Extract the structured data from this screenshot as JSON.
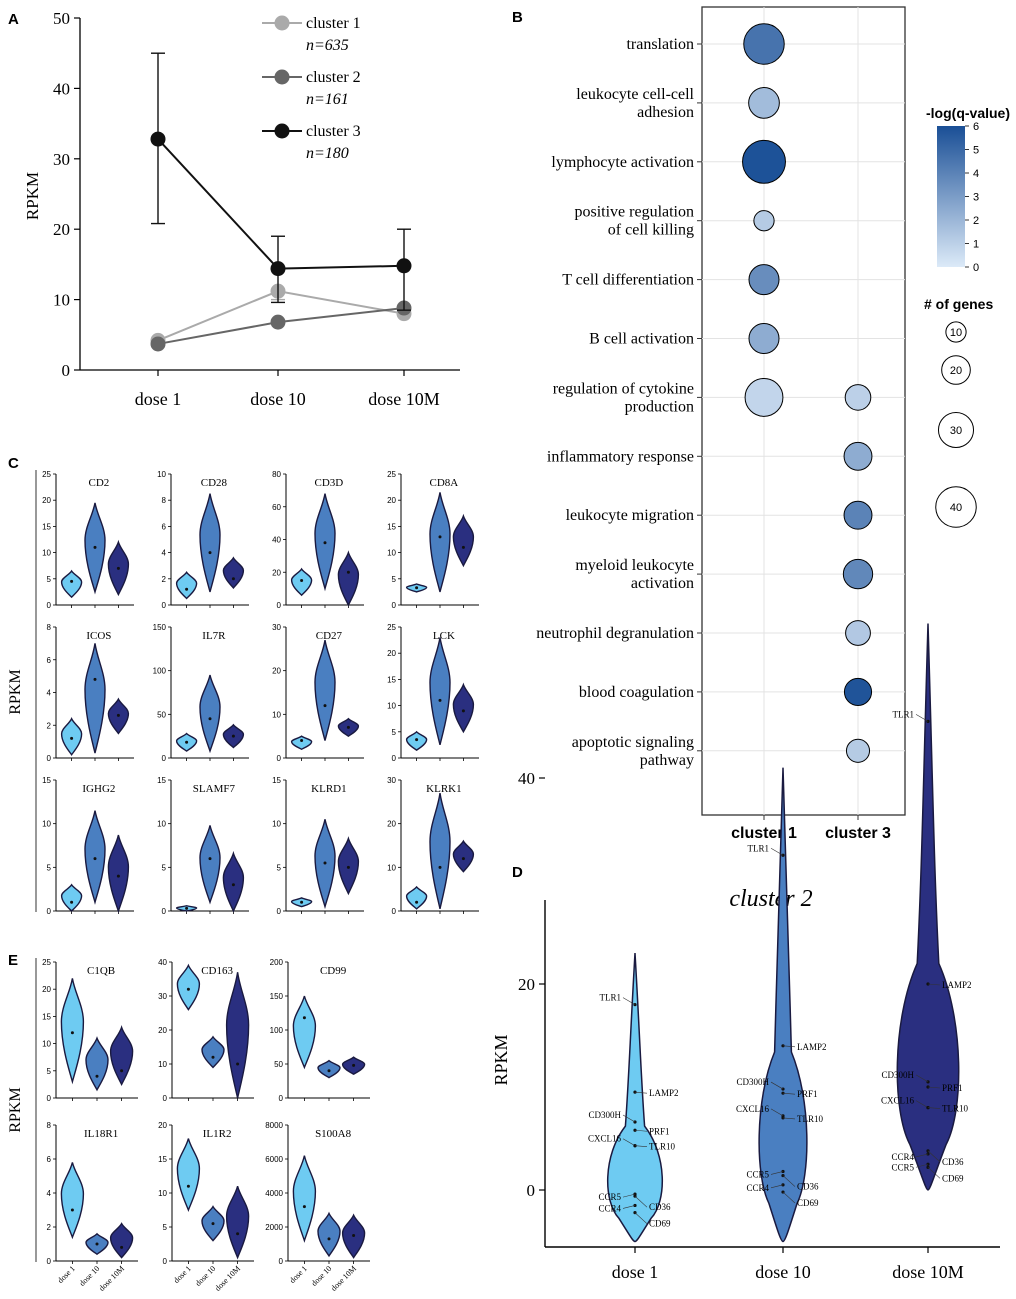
{
  "panel_labels": {
    "a": "A",
    "b": "B",
    "c": "C",
    "d": "D",
    "e": "E"
  },
  "chart_data": [
    {
      "panel": "A",
      "type": "line",
      "ylabel": "RPKM",
      "categories": [
        "dose 1",
        "dose 10",
        "dose 10M"
      ],
      "ylim": [
        0,
        50
      ],
      "yticks": [
        "0",
        "10",
        "20",
        "30",
        "40",
        "50"
      ],
      "series": [
        {
          "name": "cluster 1",
          "n_label": "n=635",
          "color": "#aaaaaa",
          "values": [
            4.2,
            11.2,
            8.0
          ],
          "err_low": [
            4.2,
            10.0,
            8.0
          ],
          "err_high": [
            4.2,
            11.2,
            8.0
          ]
        },
        {
          "name": "cluster 2",
          "n_label": "n=161",
          "color": "#666666",
          "values": [
            3.7,
            6.8,
            8.8
          ],
          "err_low": [
            3.7,
            6.8,
            8.8
          ],
          "err_high": [
            3.7,
            6.8,
            8.8
          ]
        },
        {
          "name": "cluster 3",
          "n_label": "n=180",
          "color": "#111111",
          "values": [
            32.8,
            14.4,
            14.8
          ],
          "err_low": [
            20.8,
            9.6,
            8.5
          ],
          "err_high": [
            45.0,
            19.0,
            20.0
          ]
        }
      ]
    },
    {
      "panel": "B",
      "type": "scatter",
      "subtype": "bubble",
      "terms": [
        "translation",
        "leukocyte cell-cell|adhesion",
        "lymphocyte activation",
        "positive regulation|of cell killing",
        "T cell differentiation",
        "B cell activation",
        "regulation of cytokine|production",
        "inflammatory response",
        "leukocyte migration",
        "myeloid leukocyte|activation",
        "neutrophil degranulation",
        "blood coagulation",
        "apoptotic signaling|pathway"
      ],
      "columns": [
        "cluster 1",
        "cluster 3"
      ],
      "points": [
        {
          "term": 0,
          "col": 0,
          "genes": 40,
          "q": 4.6
        },
        {
          "term": 1,
          "col": 0,
          "genes": 23,
          "q": 1.8
        },
        {
          "term": 2,
          "col": 0,
          "genes": 45,
          "q": 5.9
        },
        {
          "term": 3,
          "col": 0,
          "genes": 10,
          "q": 1.2
        },
        {
          "term": 4,
          "col": 0,
          "genes": 22,
          "q": 3.6
        },
        {
          "term": 5,
          "col": 0,
          "genes": 22,
          "q": 2.4
        },
        {
          "term": 6,
          "col": 0,
          "genes": 35,
          "q": 0.8
        },
        {
          "term": 6,
          "col": 1,
          "genes": 16,
          "q": 1.0
        },
        {
          "term": 7,
          "col": 1,
          "genes": 19,
          "q": 2.4
        },
        {
          "term": 8,
          "col": 1,
          "genes": 19,
          "q": 4.0
        },
        {
          "term": 9,
          "col": 1,
          "genes": 21,
          "q": 3.8
        },
        {
          "term": 10,
          "col": 1,
          "genes": 15,
          "q": 1.3
        },
        {
          "term": 11,
          "col": 1,
          "genes": 18,
          "q": 5.8
        },
        {
          "term": 12,
          "col": 1,
          "genes": 13,
          "q": 1.2
        }
      ],
      "colorbar": {
        "title": "-log(q-value)",
        "min": 0,
        "max": 6,
        "ticks": [
          "0",
          "1",
          "2",
          "3",
          "4",
          "5",
          "6"
        ]
      },
      "size_legend": {
        "title": "# of genes",
        "values": [
          10,
          20,
          30,
          40
        ],
        "labels": [
          "10",
          "20",
          "30",
          "40"
        ]
      }
    },
    {
      "panel": "C",
      "type": "violin",
      "ylabel": "RPKM",
      "groups": [
        "dose 1",
        "dose 10",
        "dose 10M"
      ],
      "genes": [
        {
          "name": "CD2",
          "yticks": [
            "0",
            "5",
            "10",
            "15",
            "20",
            "25"
          ],
          "ymax": 25,
          "ranges": [
            [
              1.5,
              6.5
            ],
            [
              2.5,
              19.5
            ],
            [
              2,
              12
            ]
          ],
          "medians": [
            4.5,
            11,
            7
          ]
        },
        {
          "name": "CD28",
          "yticks": [
            "0",
            "2",
            "4",
            "6",
            "8",
            "10"
          ],
          "ymax": 10,
          "ranges": [
            [
              0.5,
              2.5
            ],
            [
              1,
              8.5
            ],
            [
              1.3,
              3.6
            ]
          ],
          "medians": [
            1.2,
            4,
            2
          ]
        },
        {
          "name": "CD3D",
          "yticks": [
            "0",
            "20",
            "40",
            "60",
            "80"
          ],
          "ymax": 80,
          "ranges": [
            [
              6,
              22
            ],
            [
              10,
              68
            ],
            [
              0,
              32
            ]
          ],
          "medians": [
            15,
            38,
            20
          ]
        },
        {
          "name": "CD8A",
          "yticks": [
            "0",
            "5",
            "10",
            "15",
            "20",
            "25"
          ],
          "ymax": 25,
          "ranges": [
            [
              2.5,
              4
            ],
            [
              2.5,
              21.5
            ],
            [
              7.5,
              17
            ]
          ],
          "medians": [
            3.3,
            13,
            11
          ]
        },
        {
          "name": "ICOS",
          "yticks": [
            "0",
            "2",
            "4",
            "6",
            "8"
          ],
          "ymax": 8,
          "ranges": [
            [
              0.2,
              2.4
            ],
            [
              0.3,
              7
            ],
            [
              1.5,
              3.6
            ]
          ],
          "medians": [
            1.2,
            4.8,
            2.6
          ]
        },
        {
          "name": "IL7R",
          "yticks": [
            "0",
            "50",
            "100",
            "150"
          ],
          "ymax": 150,
          "ranges": [
            [
              8,
              28
            ],
            [
              8,
              95
            ],
            [
              12,
              38
            ]
          ],
          "medians": [
            18,
            45,
            25
          ]
        },
        {
          "name": "CD27",
          "yticks": [
            "0",
            "10",
            "20",
            "30"
          ],
          "ymax": 30,
          "ranges": [
            [
              2,
              5
            ],
            [
              4,
              27
            ],
            [
              5,
              9
            ]
          ],
          "medians": [
            4,
            12,
            7
          ]
        },
        {
          "name": "LCK",
          "yticks": [
            "0",
            "5",
            "10",
            "15",
            "20",
            "25"
          ],
          "ymax": 25,
          "ranges": [
            [
              1.5,
              5
            ],
            [
              2.5,
              23
            ],
            [
              5,
              14
            ]
          ],
          "medians": [
            3.5,
            11,
            9
          ]
        },
        {
          "name": "IGHG2",
          "yticks": [
            "0",
            "5",
            "10",
            "15"
          ],
          "ymax": 15,
          "ranges": [
            [
              0,
              3
            ],
            [
              1,
              11.5
            ],
            [
              0,
              8.7
            ]
          ],
          "medians": [
            1,
            6,
            4
          ]
        },
        {
          "name": "SLAMF7",
          "yticks": [
            "0",
            "5",
            "10",
            "15"
          ],
          "ymax": 15,
          "ranges": [
            [
              0,
              0.6
            ],
            [
              1,
              9.8
            ],
            [
              0,
              6.6
            ]
          ],
          "medians": [
            0.3,
            6,
            3
          ]
        },
        {
          "name": "KLRD1",
          "yticks": [
            "0",
            "5",
            "10",
            "15"
          ],
          "ymax": 15,
          "ranges": [
            [
              0.5,
              1.5
            ],
            [
              0.5,
              10.5
            ],
            [
              2,
              8.3
            ]
          ],
          "medians": [
            1,
            5.5,
            5
          ]
        },
        {
          "name": "KLRK1",
          "yticks": [
            "0",
            "10",
            "20",
            "30"
          ],
          "ymax": 30,
          "ranges": [
            [
              0.5,
              5.5
            ],
            [
              0.5,
              27
            ],
            [
              9,
              16
            ]
          ],
          "medians": [
            2,
            10,
            12
          ]
        }
      ]
    },
    {
      "panel": "D",
      "type": "violin",
      "title": "cluster 2",
      "ylabel": "RPKM",
      "groups": [
        "dose 1",
        "dose 10",
        "dose 10M"
      ],
      "ylim": [
        -5,
        55
      ],
      "yticks": [
        "0",
        "20",
        "40"
      ],
      "violins": [
        {
          "range": [
            -5,
            23
          ],
          "color": "#6ecbf2",
          "median": 3
        },
        {
          "range": [
            -5,
            41
          ],
          "color": "#4a7fc1",
          "median": 6
        },
        {
          "range": [
            0,
            55
          ],
          "color": "#2a2f80",
          "median": 6
        }
      ],
      "gene_labels": [
        [
          {
            "g": "TLR1",
            "v": 18
          },
          {
            "g": "LAMP2",
            "v": 9.5
          },
          {
            "g": "CD300H",
            "v": 6.6
          },
          {
            "g": "PRF1",
            "v": 5.8
          },
          {
            "g": "CXCL16",
            "v": 4.3
          },
          {
            "g": "TLR10",
            "v": 4.3
          },
          {
            "g": "CCR5",
            "v": -0.4
          },
          {
            "g": "CD36",
            "v": -0.6
          },
          {
            "g": "CCR4",
            "v": -1.5
          },
          {
            "g": "CD69",
            "v": -2.2
          }
        ],
        [
          {
            "g": "TLR1",
            "v": 32.5
          },
          {
            "g": "LAMP2",
            "v": 14
          },
          {
            "g": "CD300H",
            "v": 9.8
          },
          {
            "g": "PRF1",
            "v": 9.4
          },
          {
            "g": "CXCL16",
            "v": 7.2
          },
          {
            "g": "TLR10",
            "v": 7
          },
          {
            "g": "CCR5",
            "v": 1.8
          },
          {
            "g": "CD36",
            "v": 1.4
          },
          {
            "g": "CCR4",
            "v": 0.5
          },
          {
            "g": "CD69",
            "v": -0.2
          }
        ],
        [
          {
            "g": "TLR1",
            "v": 45.5
          },
          {
            "g": "LAMP2",
            "v": 20
          },
          {
            "g": "CD300H",
            "v": 10.5
          },
          {
            "g": "PRF1",
            "v": 10
          },
          {
            "g": "CXCL16",
            "v": 8
          },
          {
            "g": "TLR10",
            "v": 8
          },
          {
            "g": "CCR4",
            "v": 3.5
          },
          {
            "g": "CD36",
            "v": 3.8
          },
          {
            "g": "CCR5",
            "v": 2.5
          },
          {
            "g": "CD69",
            "v": 2.2
          }
        ]
      ]
    },
    {
      "panel": "E",
      "type": "violin",
      "ylabel": "RPKM",
      "groups": [
        "dose 1",
        "dose 10",
        "dose 10M"
      ],
      "genes": [
        {
          "name": "C1QB",
          "yticks": [
            "0",
            "5",
            "10",
            "15",
            "20",
            "25"
          ],
          "ymax": 25,
          "ranges": [
            [
              3,
              22
            ],
            [
              1.5,
              11
            ],
            [
              2.5,
              13
            ]
          ],
          "medians": [
            12,
            4,
            5
          ]
        },
        {
          "name": "CD163",
          "yticks": [
            "0",
            "10",
            "20",
            "30",
            "40"
          ],
          "ymax": 40,
          "ranges": [
            [
              26,
              39
            ],
            [
              9,
              18
            ],
            [
              0,
              37
            ]
          ],
          "medians": [
            32,
            12,
            10
          ]
        },
        {
          "name": "CD99",
          "yticks": [
            "0",
            "50",
            "100",
            "150",
            "200"
          ],
          "ymax": 200,
          "ranges": [
            [
              45,
              150
            ],
            [
              30,
              55
            ],
            [
              35,
              60
            ]
          ],
          "medians": [
            118,
            40,
            48
          ]
        },
        {
          "name": "IL18R1",
          "yticks": [
            "0",
            "2",
            "4",
            "6",
            "8"
          ],
          "ymax": 8,
          "ranges": [
            [
              1.4,
              5.8
            ],
            [
              0.4,
              1.6
            ],
            [
              0.2,
              2.2
            ]
          ],
          "medians": [
            3,
            1,
            0.8
          ]
        },
        {
          "name": "IL1R2",
          "yticks": [
            "0",
            "5",
            "10",
            "15",
            "20"
          ],
          "ymax": 20,
          "ranges": [
            [
              7.5,
              18
            ],
            [
              3,
              8
            ],
            [
              0.5,
              11
            ]
          ],
          "medians": [
            11,
            5.5,
            4
          ]
        },
        {
          "name": "S100A8",
          "yticks": [
            "0",
            "2000",
            "4000",
            "6000",
            "8000"
          ],
          "ymax": 8000,
          "ranges": [
            [
              1200,
              6200
            ],
            [
              300,
              2800
            ],
            [
              200,
              2700
            ]
          ],
          "medians": [
            3200,
            1300,
            1500
          ]
        }
      ]
    }
  ]
}
